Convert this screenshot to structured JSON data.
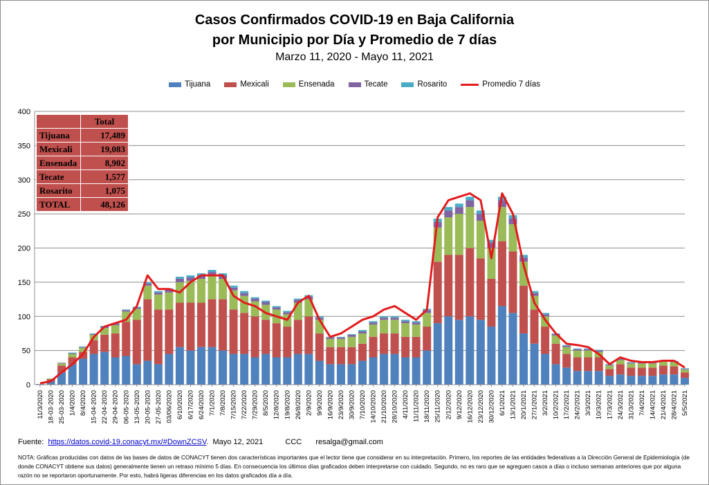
{
  "title_line1": "Casos Confirmados COVID-19 en Baja California",
  "title_line2": "por Municipio por Día y Promedio de 7 días",
  "subtitle": "Marzo 11, 2020  - Mayo 11, 2021",
  "colors": {
    "Tijuana": "#4f81bd",
    "Mexicali": "#c0504d",
    "Ensenada": "#9bbb59",
    "Tecate": "#8064a2",
    "Rosarito": "#4bacc6",
    "Promedio 7 días": "#e31a1c"
  },
  "legend": [
    "Tijuana",
    "Mexicali",
    "Ensenada",
    "Tecate",
    "Rosarito",
    "Promedio 7 días"
  ],
  "totals_table": {
    "header": "Total",
    "rows": [
      {
        "label": "Tijuana",
        "value": "17,489"
      },
      {
        "label": "Mexicali",
        "value": "19,083"
      },
      {
        "label": "Ensenada",
        "value": "8,902"
      },
      {
        "label": "Tecate",
        "value": "1,577"
      },
      {
        "label": "Rosarito",
        "value": "1,075"
      },
      {
        "label": "TOTAL",
        "value": "48,126"
      }
    ]
  },
  "footer": {
    "fuente_label": "Fuente:",
    "url": "https://datos.covid-19.conacyt.mx/#DownZCSV",
    "date": "Mayo 12, 2021",
    "ccc": "CCC",
    "email": "resalga@gmail.com"
  },
  "note": "NOTA: Gráficas producidas con datos de las bases de datos de CONACYT tienen dos características importantes que el lector tiene que considerar en su interpretación. Primero, los reportes de las entidades federativas a la Dirección General de Epidemiología (de donde CONACYT obtiene sus datos) generalmente tienen un retraso mínimo 5 días. En consecuencia los últimos días graficados deben interpretarse con cuidado. Segundo, no es raro que se agreguen casos a días o incluso semanas anteriores que por alguna razón no se reportaron oportunamente. Por esto, habrá ligeras diferencias en los datos graficados día a día.",
  "chart_data": {
    "type": "bar",
    "stacked": true,
    "ylim": [
      0,
      400
    ],
    "yticks": [
      0,
      50,
      100,
      150,
      200,
      250,
      300,
      350,
      400
    ],
    "grid": true,
    "legend_position": "top",
    "x_tick_labels": [
      "11/3/2020",
      "18-03-2020",
      "25-03-2020",
      "1/4/2020",
      "8/4/2020",
      "15-04-2020",
      "22-04-2020",
      "29-04-2020",
      "06-05-2020",
      "13-05-2020",
      "20-05-2020",
      "27-05-2020",
      "03/06/2020",
      "6/10/2020",
      "6/17/2020",
      "6/24/2020",
      "7/1/2020",
      "7/8/2020",
      "7/15/2020",
      "7/22/2020",
      "7/29/2020",
      "8/5/2020",
      "12/8/2020",
      "19/8/2020",
      "26/8/2020",
      "2/9/2020",
      "9/9/2020",
      "16/9/2020",
      "23/9/2020",
      "30/9/2020",
      "7/10/2020",
      "14/10/2020",
      "21/10/2020",
      "28/10/2020",
      "4/11/2020",
      "11/11/2020",
      "18/11/2020",
      "25/11/2020",
      "2/12/2020",
      "9/12/2020",
      "16/12/2020",
      "23/12/2020",
      "30/12/2020",
      "6/1/2021",
      "13/1/2021",
      "20/1/2021",
      "27/1/2021",
      "3/2/2021",
      "10/2/2021",
      "17/2/2021",
      "24/2/2021",
      "3/3/2021",
      "10/3/2021",
      "17/3/2021",
      "24/3/2021",
      "31/3/2021",
      "7/4/2021",
      "14/4/2021",
      "21/4/2021",
      "28/4/2021",
      "5/5/2021"
    ],
    "series": [
      {
        "name": "Tijuana",
        "weekly_avg_values": [
          1,
          5,
          18,
          30,
          38,
          45,
          48,
          40,
          42,
          30,
          35,
          30,
          45,
          55,
          50,
          55,
          55,
          50,
          45,
          45,
          40,
          45,
          40,
          40,
          45,
          45,
          35,
          30,
          30,
          30,
          35,
          40,
          45,
          45,
          40,
          40,
          50,
          90,
          100,
          95,
          100,
          95,
          85,
          115,
          105,
          75,
          60,
          45,
          30,
          25,
          20,
          20,
          20,
          13,
          15,
          13,
          13,
          13,
          15,
          15,
          10
        ]
      },
      {
        "name": "Mexicali",
        "weekly_avg_values": [
          0,
          3,
          10,
          10,
          10,
          20,
          25,
          35,
          50,
          65,
          90,
          80,
          65,
          65,
          70,
          65,
          70,
          75,
          65,
          60,
          60,
          50,
          50,
          45,
          50,
          55,
          40,
          25,
          25,
          25,
          25,
          30,
          30,
          30,
          30,
          30,
          35,
          90,
          90,
          95,
          100,
          90,
          70,
          95,
          90,
          70,
          50,
          40,
          30,
          20,
          20,
          20,
          20,
          10,
          15,
          12,
          12,
          12,
          13,
          12,
          8
        ]
      },
      {
        "name": "Ensenada",
        "weekly_avg_values": [
          0,
          1,
          3,
          5,
          6,
          8,
          10,
          12,
          15,
          16,
          20,
          22,
          25,
          30,
          32,
          35,
          35,
          30,
          28,
          25,
          22,
          22,
          20,
          18,
          25,
          25,
          20,
          12,
          12,
          15,
          15,
          18,
          20,
          20,
          20,
          18,
          20,
          50,
          55,
          60,
          60,
          55,
          45,
          50,
          40,
          35,
          20,
          15,
          12,
          10,
          10,
          10,
          8,
          5,
          6,
          6,
          6,
          6,
          6,
          6,
          4
        ]
      },
      {
        "name": "Tecate",
        "weekly_avg_values": [
          0,
          0,
          1,
          1,
          1,
          1,
          2,
          2,
          2,
          2,
          3,
          3,
          4,
          5,
          5,
          5,
          5,
          5,
          4,
          4,
          4,
          4,
          3,
          3,
          4,
          4,
          3,
          2,
          2,
          3,
          3,
          3,
          3,
          3,
          3,
          3,
          4,
          8,
          10,
          10,
          10,
          10,
          8,
          10,
          8,
          6,
          4,
          3,
          2,
          2,
          2,
          2,
          2,
          1,
          1,
          1,
          1,
          1,
          1,
          1,
          1
        ]
      },
      {
        "name": "Rosarito",
        "weekly_avg_values": [
          0,
          0,
          0,
          1,
          1,
          1,
          1,
          1,
          1,
          1,
          2,
          2,
          2,
          3,
          3,
          3,
          3,
          3,
          3,
          3,
          2,
          2,
          2,
          2,
          2,
          2,
          2,
          1,
          1,
          1,
          2,
          2,
          2,
          2,
          2,
          2,
          2,
          5,
          5,
          5,
          5,
          5,
          4,
          5,
          5,
          4,
          3,
          2,
          1,
          1,
          1,
          1,
          1,
          1,
          1,
          1,
          1,
          1,
          1,
          1,
          1
        ]
      },
      {
        "name": "Promedio 7 días",
        "type": "line",
        "weekly_values": [
          2,
          5,
          18,
          30,
          45,
          70,
          85,
          90,
          95,
          115,
          160,
          140,
          140,
          135,
          150,
          160,
          160,
          160,
          130,
          120,
          115,
          105,
          100,
          95,
          120,
          130,
          95,
          70,
          75,
          85,
          95,
          100,
          110,
          115,
          105,
          95,
          110,
          245,
          270,
          275,
          280,
          270,
          185,
          280,
          250,
          175,
          120,
          95,
          75,
          60,
          58,
          55,
          45,
          30,
          40,
          35,
          33,
          33,
          35,
          35,
          25
        ]
      }
    ]
  }
}
